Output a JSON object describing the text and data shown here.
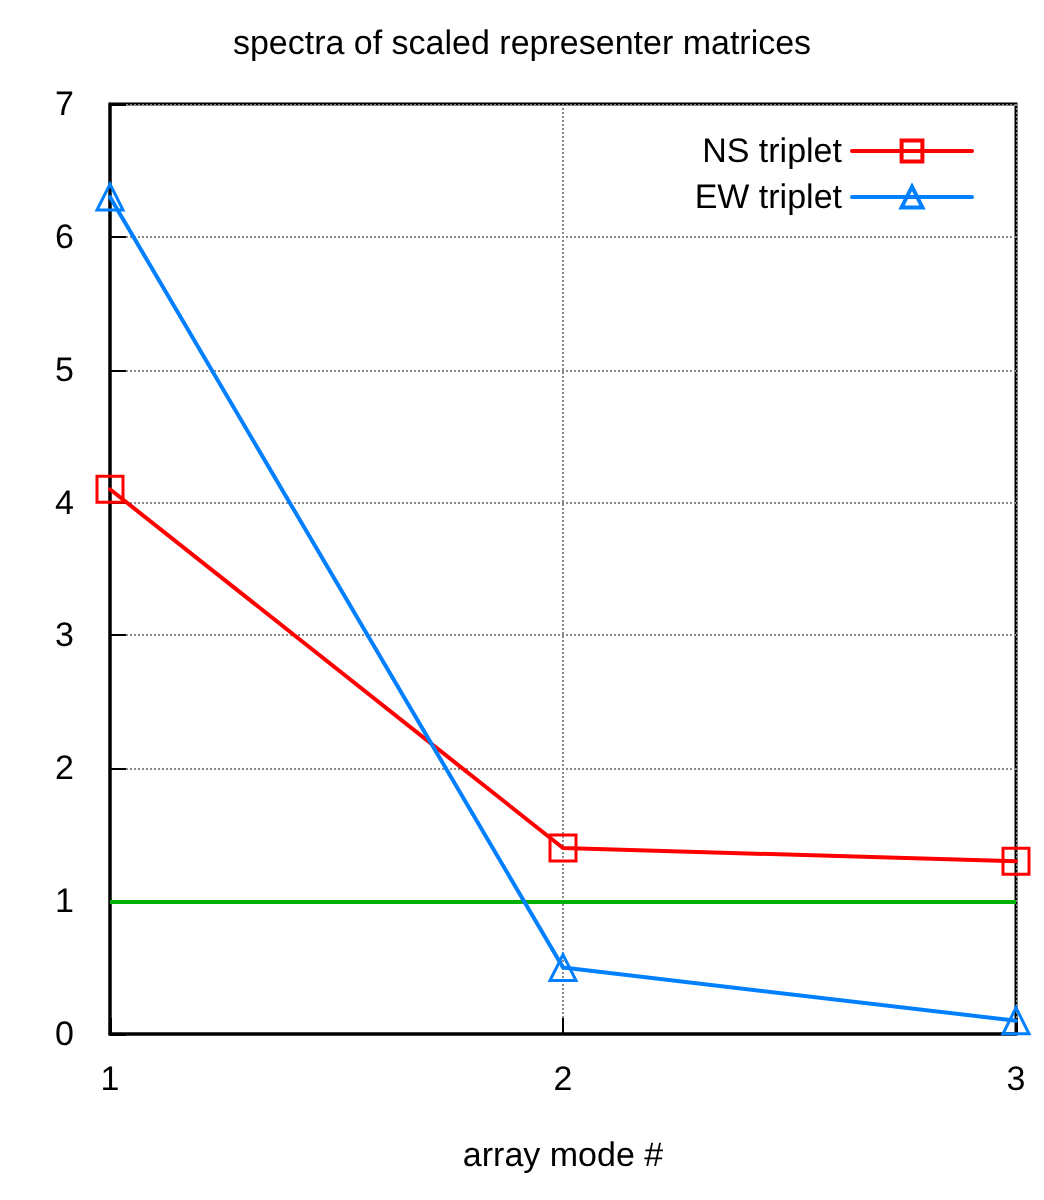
{
  "chart_data": {
    "type": "line",
    "title": "spectra of scaled representer matrices",
    "xlabel": "array mode #",
    "x": [
      1,
      2,
      3
    ],
    "xlim": [
      1,
      3
    ],
    "xticks": [
      1,
      2,
      3
    ],
    "ylim": [
      0,
      7
    ],
    "yticks": [
      0,
      1,
      2,
      3,
      4,
      5,
      6,
      7
    ],
    "series": [
      {
        "name": "NS triplet",
        "color": "#ff0000",
        "marker": "square",
        "values": [
          4.1,
          1.4,
          1.3
        ]
      },
      {
        "name": "EW triplet",
        "color": "#0080ff",
        "marker": "triangle",
        "values": [
          6.3,
          0.5,
          0.1
        ]
      }
    ],
    "ref_lines": [
      {
        "axis": "y",
        "value": 1,
        "color": "#00b000"
      }
    ],
    "grid": true,
    "legend": "top right"
  }
}
